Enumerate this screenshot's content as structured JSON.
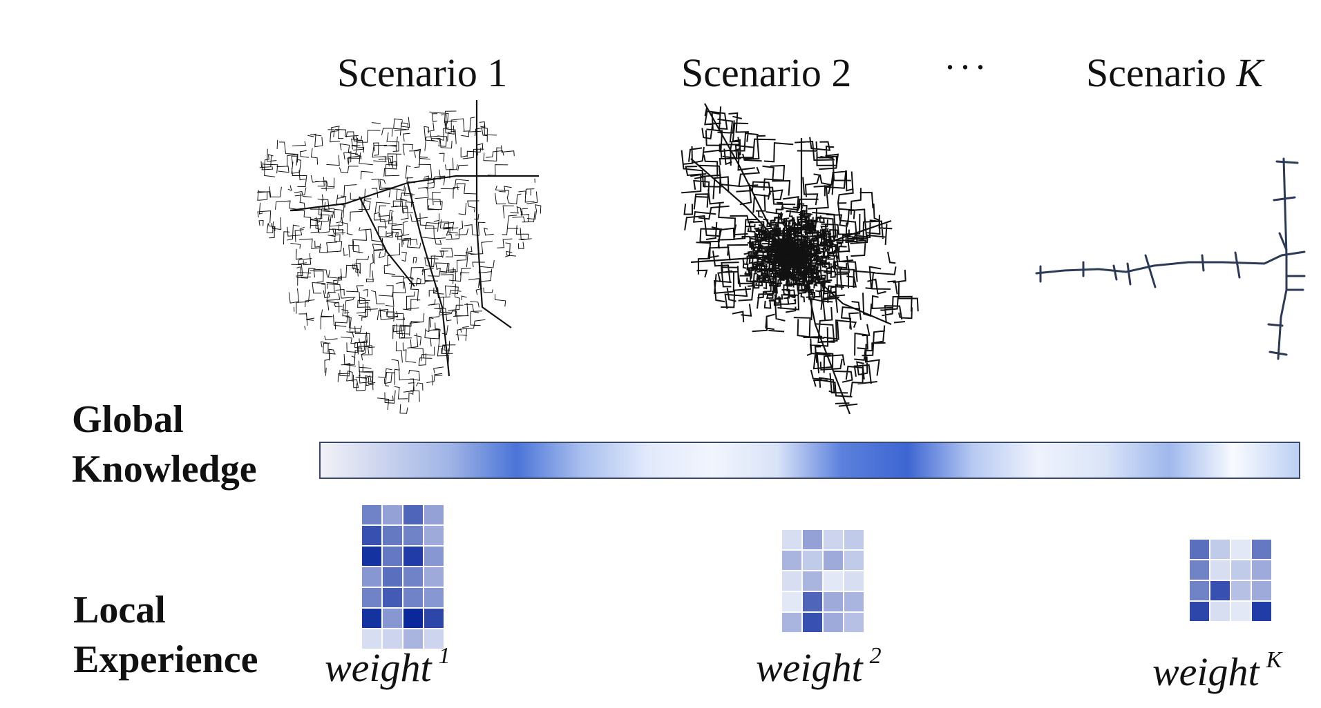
{
  "scenarios": [
    {
      "label": "Scenario 1"
    },
    {
      "label": "Scenario 2"
    },
    {
      "label_prefix": "Scenario ",
      "label_var": "K"
    }
  ],
  "ellipsis": "···",
  "global_knowledge": {
    "line1": "Global",
    "line2": "Knowledge"
  },
  "local_experience": {
    "line1": "Local",
    "line2": "Experience"
  },
  "weights": [
    {
      "base": "weight",
      "sup": "1"
    },
    {
      "base": "weight",
      "sup": "2"
    },
    {
      "base": "weight",
      "sup": "K"
    }
  ],
  "colors": {
    "bar_stops": [
      "#f2f2f7",
      "#c9d2ee",
      "#9fb4e6",
      "#4b74d8",
      "#a9bfee",
      "#e1e9fb",
      "#f1f5fd",
      "#d9e3f8",
      "#5b80dc",
      "#3e66d2",
      "#b8caf2",
      "#eef2fc",
      "#dbe5f8",
      "#9fb8ec",
      "#f8fbff",
      "#bcd0f3"
    ],
    "map_line": "#111111",
    "tree_line": "#2c3a55"
  },
  "matrices": [
    {
      "rows": 7,
      "cols": 4,
      "intensity": [
        [
          0.55,
          0.4,
          0.7,
          0.4
        ],
        [
          0.8,
          0.6,
          0.55,
          0.35
        ],
        [
          0.95,
          0.6,
          0.9,
          0.45
        ],
        [
          0.45,
          0.65,
          0.55,
          0.35
        ],
        [
          0.55,
          0.75,
          0.55,
          0.45
        ],
        [
          0.95,
          0.45,
          1.0,
          0.85
        ],
        [
          0.1,
          0.15,
          0.3,
          0.15
        ]
      ]
    },
    {
      "rows": 5,
      "cols": 4,
      "intensity": [
        [
          0.1,
          0.4,
          0.15,
          0.2
        ],
        [
          0.3,
          0.2,
          0.35,
          0.2
        ],
        [
          0.1,
          0.3,
          0.05,
          0.1
        ],
        [
          0.05,
          0.7,
          0.35,
          0.3
        ],
        [
          0.3,
          0.8,
          0.35,
          0.25
        ]
      ]
    },
    {
      "rows": 4,
      "cols": 4,
      "intensity": [
        [
          0.65,
          0.2,
          0.05,
          0.6
        ],
        [
          0.55,
          0.1,
          0.2,
          0.35
        ],
        [
          0.55,
          0.8,
          0.25,
          0.35
        ],
        [
          0.85,
          0.1,
          0.05,
          0.9
        ]
      ]
    }
  ]
}
